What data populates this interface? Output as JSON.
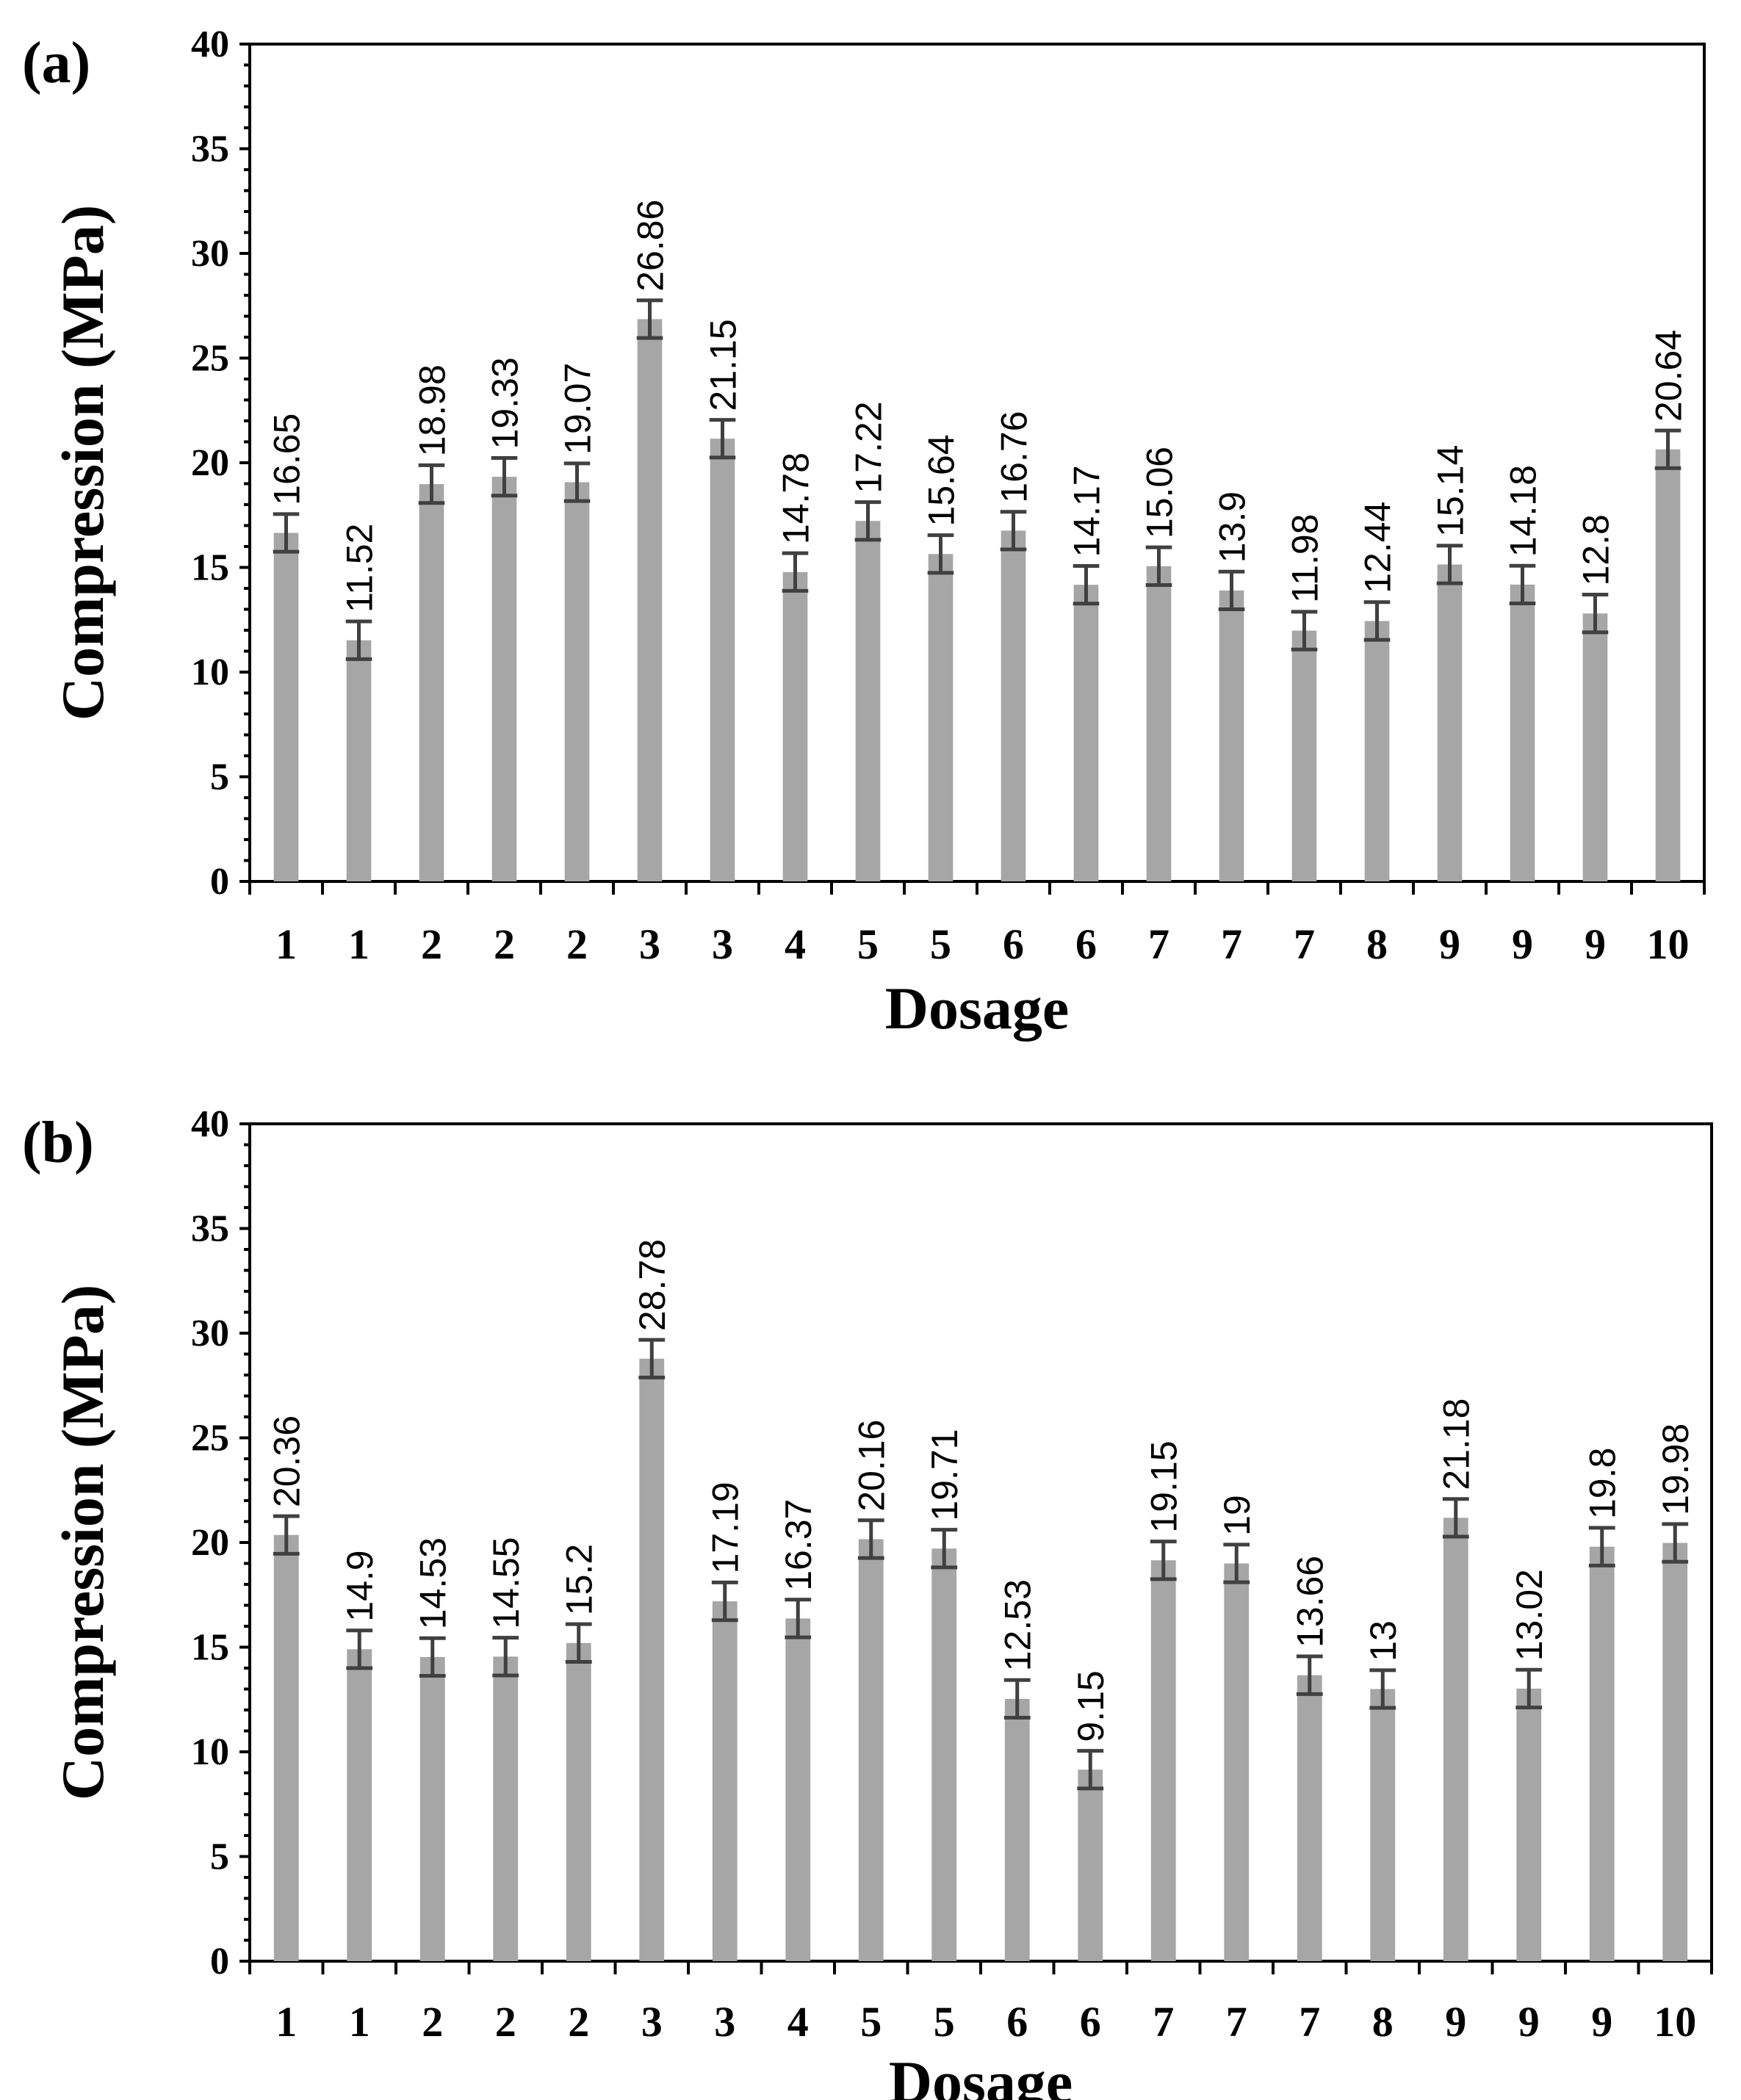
{
  "chart_data": [
    {
      "panel": "(a)",
      "type": "bar",
      "xlabel": "Dosage",
      "ylabel": "Compression (MPa)",
      "ylim": [
        0,
        40
      ],
      "yticks": [
        0,
        5,
        10,
        15,
        20,
        25,
        30,
        35,
        40
      ],
      "categories": [
        "1",
        "1",
        "2",
        "2",
        "2",
        "3",
        "3",
        "4",
        "5",
        "5",
        "6",
        "6",
        "7",
        "7",
        "7",
        "8",
        "9",
        "9",
        "9",
        "10"
      ],
      "values": [
        16.65,
        11.52,
        18.98,
        19.33,
        19.07,
        26.86,
        21.15,
        14.78,
        17.22,
        15.64,
        16.76,
        14.17,
        15.06,
        13.9,
        11.98,
        12.44,
        15.14,
        14.18,
        12.8,
        20.64
      ],
      "labels": [
        "16.65",
        "11.52",
        "18.98",
        "19.33",
        "19.07",
        "26.86",
        "21.15",
        "14.78",
        "17.22",
        "15.64",
        "16.76",
        "14.17",
        "15.06",
        "13.9",
        "11.98",
        "12.44",
        "15.14",
        "14.18",
        "12.8",
        "20.64"
      ],
      "error": 0.9,
      "bar_color": "#a6a6a6",
      "error_color": "#404040"
    },
    {
      "panel": "(b)",
      "type": "bar",
      "xlabel": "Dosage",
      "ylabel": "Compression (MPa)",
      "ylim": [
        0,
        40
      ],
      "yticks": [
        0,
        5,
        10,
        15,
        20,
        25,
        30,
        35,
        40
      ],
      "categories": [
        "1",
        "1",
        "2",
        "2",
        "2",
        "3",
        "3",
        "4",
        "5",
        "5",
        "6",
        "6",
        "7",
        "7",
        "7",
        "8",
        "9",
        "9",
        "9",
        "10"
      ],
      "values": [
        20.36,
        14.9,
        14.53,
        14.55,
        15.2,
        28.78,
        17.19,
        16.37,
        20.16,
        19.71,
        12.53,
        9.15,
        19.15,
        19,
        13.66,
        13,
        21.18,
        13.02,
        19.8,
        19.98
      ],
      "labels": [
        "20.36",
        "14.9",
        "14.53",
        "14.55",
        "15.2",
        "28.78",
        "17.19",
        "16.37",
        "20.16",
        "19.71",
        "12.53",
        "9.15",
        "19.15",
        "19",
        "13.66",
        "13",
        "21.18",
        "13.02",
        "19.8",
        "19.98"
      ],
      "error": 0.9,
      "bar_color": "#a6a6a6",
      "error_color": "#404040"
    }
  ]
}
